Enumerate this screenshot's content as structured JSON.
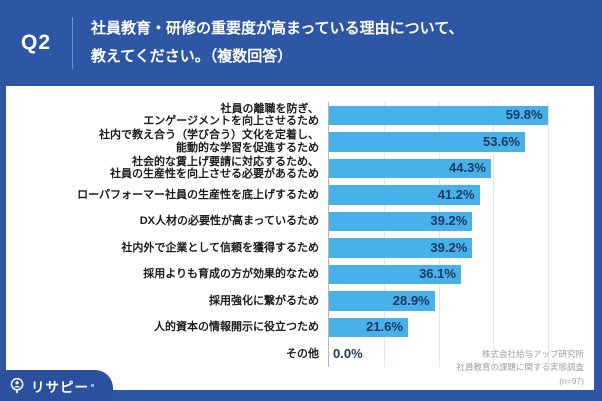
{
  "header": {
    "q_label": "Q2",
    "title_lines": [
      "社員教育・研修の重要度が高まっている理由について、",
      "教えてください。（複数回答）"
    ]
  },
  "chart_data": {
    "type": "bar",
    "orientation": "horizontal",
    "unit": "%",
    "categories": [
      [
        "社員の離職を防ぎ、",
        "エンゲージメントを向上させるため"
      ],
      [
        "社内で教え合う（学び合う）文化を定着し、",
        "能動的な学習を促進するため"
      ],
      [
        "社会的な賃上げ要請に対応するため、",
        "社員の生産性を向上させる必要があるため"
      ],
      [
        "ローパフォーマー社員の生産性を底上げするため"
      ],
      [
        "DX人材の必要性が高まっているため"
      ],
      [
        "社内外で企業として信頼を獲得するため"
      ],
      [
        "採用よりも育成の方が効果的なため"
      ],
      [
        "採用強化に繋がるため"
      ],
      [
        "人的資本の情報開示に役立つため"
      ],
      [
        "その他"
      ]
    ],
    "values": [
      59.8,
      53.6,
      44.3,
      41.2,
      39.2,
      39.2,
      36.1,
      28.9,
      21.6,
      0.0
    ],
    "value_labels": [
      "59.8%",
      "53.6%",
      "44.3%",
      "41.2%",
      "39.2%",
      "39.2%",
      "36.1%",
      "28.9%",
      "21.6%",
      "0.0%"
    ],
    "xlim": [
      0,
      72.5
    ],
    "gridlines": [
      15,
      30,
      45,
      60
    ],
    "grid": true,
    "legend": false,
    "bar_color": "#47b1e9",
    "value_label_color": "#1f3864"
  },
  "source": {
    "line1": "株式会社給与アップ研究所",
    "line2": "社員教育の課題に関する実態調査",
    "line3": "(n=97)"
  },
  "logo": {
    "text": "リサピー"
  },
  "colors": {
    "background_blue": "#2d56a5",
    "logo_tab_blue": "#2b509e",
    "panel_white": "#ffffff"
  }
}
